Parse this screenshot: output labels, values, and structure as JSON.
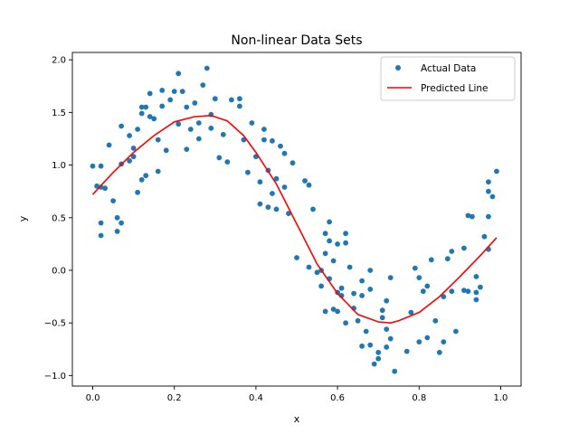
{
  "chart_data": {
    "type": "scatter",
    "title": "Non-linear Data Sets",
    "xlabel": "x",
    "ylabel": "y",
    "xlim": [
      -0.05,
      1.05
    ],
    "ylim": [
      -1.1,
      2.07
    ],
    "xticks": [
      0.0,
      0.2,
      0.4,
      0.6,
      0.8,
      1.0
    ],
    "xtick_labels": [
      "0.0",
      "0.2",
      "0.4",
      "0.6",
      "0.8",
      "1.0"
    ],
    "yticks": [
      -1.0,
      -0.5,
      0.0,
      0.5,
      1.0,
      1.5,
      2.0
    ],
    "ytick_labels": [
      "−1.0",
      "−0.5",
      "0.0",
      "0.5",
      "1.0",
      "1.5",
      "2.0"
    ],
    "grid": false,
    "legend_position": "top-right",
    "series": [
      {
        "name": "Actual Data",
        "kind": "scatter",
        "color": "#1f77b4",
        "points": [
          [
            0.0,
            0.99
          ],
          [
            0.01,
            0.8
          ],
          [
            0.02,
            0.79
          ],
          [
            0.02,
            0.99
          ],
          [
            0.02,
            0.45
          ],
          [
            0.02,
            0.33
          ],
          [
            0.03,
            0.78
          ],
          [
            0.04,
            1.19
          ],
          [
            0.05,
            0.66
          ],
          [
            0.06,
            0.5
          ],
          [
            0.06,
            0.37
          ],
          [
            0.07,
            1.01
          ],
          [
            0.07,
            0.45
          ],
          [
            0.07,
            1.37
          ],
          [
            0.09,
            1.28
          ],
          [
            0.09,
            1.04
          ],
          [
            0.1,
            1.16
          ],
          [
            0.1,
            1.08
          ],
          [
            0.11,
            0.74
          ],
          [
            0.11,
            1.34
          ],
          [
            0.12,
            1.55
          ],
          [
            0.12,
            1.49
          ],
          [
            0.12,
            0.86
          ],
          [
            0.13,
            0.9
          ],
          [
            0.13,
            1.55
          ],
          [
            0.14,
            1.68
          ],
          [
            0.14,
            1.46
          ],
          [
            0.15,
            1.44
          ],
          [
            0.16,
            1.24
          ],
          [
            0.16,
            0.94
          ],
          [
            0.17,
            1.71
          ],
          [
            0.17,
            1.56
          ],
          [
            0.18,
            1.14
          ],
          [
            0.19,
            1.62
          ],
          [
            0.2,
            1.7
          ],
          [
            0.21,
            1.87
          ],
          [
            0.21,
            1.39
          ],
          [
            0.22,
            1.7
          ],
          [
            0.23,
            1.55
          ],
          [
            0.23,
            1.15
          ],
          [
            0.24,
            1.34
          ],
          [
            0.25,
            1.59
          ],
          [
            0.26,
            1.4
          ],
          [
            0.26,
            1.25
          ],
          [
            0.27,
            1.76
          ],
          [
            0.28,
            1.92
          ],
          [
            0.29,
            1.48
          ],
          [
            0.29,
            1.35
          ],
          [
            0.3,
            1.63
          ],
          [
            0.31,
            1.07
          ],
          [
            0.32,
            1.29
          ],
          [
            0.33,
            1.03
          ],
          [
            0.34,
            1.62
          ],
          [
            0.36,
            1.63
          ],
          [
            0.36,
            1.56
          ],
          [
            0.37,
            1.24
          ],
          [
            0.38,
            0.93
          ],
          [
            0.39,
            1.4
          ],
          [
            0.4,
            1.08
          ],
          [
            0.41,
            0.84
          ],
          [
            0.41,
            0.63
          ],
          [
            0.42,
            1.34
          ],
          [
            0.42,
            1.24
          ],
          [
            0.43,
            0.95
          ],
          [
            0.43,
            0.6
          ],
          [
            0.44,
            1.23
          ],
          [
            0.44,
            0.73
          ],
          [
            0.45,
            0.87
          ],
          [
            0.45,
            0.58
          ],
          [
            0.46,
            1.18
          ],
          [
            0.47,
            0.79
          ],
          [
            0.47,
            1.11
          ],
          [
            0.48,
            0.54
          ],
          [
            0.49,
            1.02
          ],
          [
            0.5,
            0.12
          ],
          [
            0.52,
            0.85
          ],
          [
            0.53,
            0.81
          ],
          [
            0.53,
            0.03
          ],
          [
            0.54,
            0.58
          ],
          [
            0.55,
            -0.02
          ],
          [
            0.56,
            0.0
          ],
          [
            0.56,
            -0.15
          ],
          [
            0.57,
            -0.39
          ],
          [
            0.57,
            0.16
          ],
          [
            0.57,
            0.35
          ],
          [
            0.58,
            0.46
          ],
          [
            0.58,
            -0.08
          ],
          [
            0.58,
            0.28
          ],
          [
            0.59,
            -0.37
          ],
          [
            0.59,
            0.09
          ],
          [
            0.6,
            -0.39
          ],
          [
            0.6,
            -0.21
          ],
          [
            0.6,
            0.25
          ],
          [
            0.61,
            -0.17
          ],
          [
            0.61,
            -0.24
          ],
          [
            0.62,
            0.35
          ],
          [
            0.62,
            0.26
          ],
          [
            0.62,
            -0.5
          ],
          [
            0.63,
            0.03
          ],
          [
            0.64,
            -0.22
          ],
          [
            0.64,
            -0.36
          ],
          [
            0.65,
            -0.48
          ],
          [
            0.66,
            -0.1
          ],
          [
            0.66,
            -0.72
          ],
          [
            0.66,
            -0.24
          ],
          [
            0.67,
            -0.58
          ],
          [
            0.68,
            -0.71
          ],
          [
            0.68,
            -0.18
          ],
          [
            0.68,
            0.0
          ],
          [
            0.69,
            -0.89
          ],
          [
            0.7,
            -0.78
          ],
          [
            0.7,
            -0.84
          ],
          [
            0.71,
            -0.38
          ],
          [
            0.71,
            -0.45
          ],
          [
            0.72,
            -0.29
          ],
          [
            0.72,
            -0.56
          ],
          [
            0.72,
            -0.73
          ],
          [
            0.73,
            -0.07
          ],
          [
            0.73,
            -0.65
          ],
          [
            0.74,
            -0.96
          ],
          [
            0.77,
            -0.77
          ],
          [
            0.78,
            -0.4
          ],
          [
            0.79,
            0.02
          ],
          [
            0.8,
            -0.07
          ],
          [
            0.8,
            -0.68
          ],
          [
            0.81,
            -0.2
          ],
          [
            0.82,
            -0.15
          ],
          [
            0.82,
            -0.64
          ],
          [
            0.83,
            0.1
          ],
          [
            0.84,
            -0.48
          ],
          [
            0.85,
            -0.78
          ],
          [
            0.86,
            -0.25
          ],
          [
            0.86,
            -0.68
          ],
          [
            0.87,
            0.11
          ],
          [
            0.88,
            -0.2
          ],
          [
            0.88,
            0.18
          ],
          [
            0.89,
            -0.58
          ],
          [
            0.91,
            -0.19
          ],
          [
            0.91,
            0.21
          ],
          [
            0.92,
            -0.2
          ],
          [
            0.92,
            0.52
          ],
          [
            0.93,
            0.51
          ],
          [
            0.94,
            -0.06
          ],
          [
            0.94,
            -0.21
          ],
          [
            0.94,
            -0.28
          ],
          [
            0.95,
            -0.16
          ],
          [
            0.96,
            0.32
          ],
          [
            0.97,
            0.51
          ],
          [
            0.97,
            0.84
          ],
          [
            0.97,
            0.75
          ],
          [
            0.98,
            0.7
          ],
          [
            0.99,
            0.94
          ],
          [
            0.97,
            0.2
          ]
        ]
      },
      {
        "name": "Predicted Line",
        "kind": "line",
        "color": "#ff0000",
        "points": [
          [
            0.0,
            0.72
          ],
          [
            0.05,
            0.93
          ],
          [
            0.1,
            1.12
          ],
          [
            0.15,
            1.28
          ],
          [
            0.2,
            1.41
          ],
          [
            0.25,
            1.46
          ],
          [
            0.29,
            1.47
          ],
          [
            0.33,
            1.42
          ],
          [
            0.37,
            1.28
          ],
          [
            0.4,
            1.12
          ],
          [
            0.45,
            0.82
          ],
          [
            0.5,
            0.44
          ],
          [
            0.55,
            0.06
          ],
          [
            0.6,
            -0.22
          ],
          [
            0.65,
            -0.42
          ],
          [
            0.7,
            -0.49
          ],
          [
            0.73,
            -0.5
          ],
          [
            0.75,
            -0.48
          ],
          [
            0.8,
            -0.4
          ],
          [
            0.85,
            -0.25
          ],
          [
            0.9,
            -0.06
          ],
          [
            0.95,
            0.14
          ],
          [
            0.99,
            0.31
          ]
        ]
      }
    ]
  }
}
